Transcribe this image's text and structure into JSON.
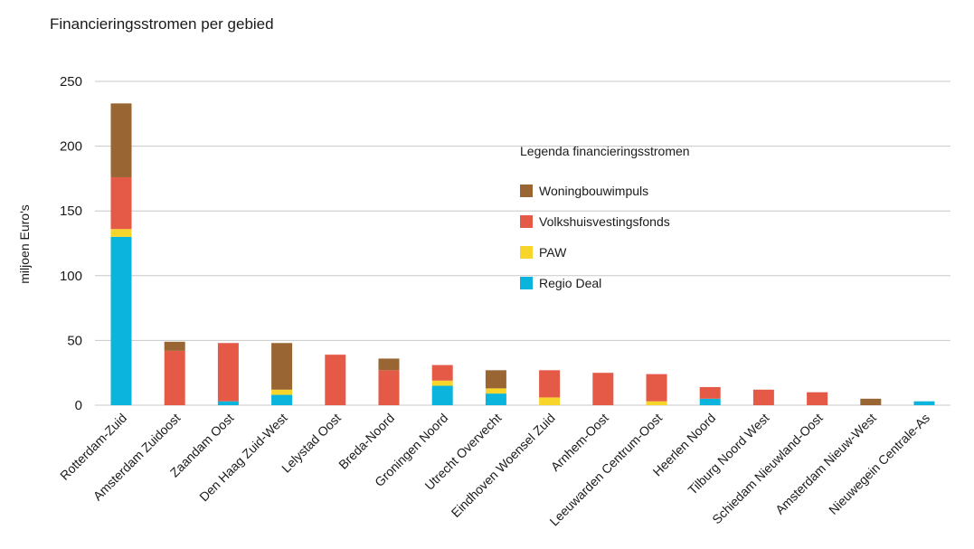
{
  "chart_data": {
    "type": "bar",
    "stacked": true,
    "title": "Financieringsstromen per gebied",
    "xlabel": "",
    "ylabel": "miljoen Euro's",
    "ylim": [
      0,
      250
    ],
    "yticks": [
      0,
      50,
      100,
      150,
      200,
      250
    ],
    "grid": true,
    "legend_title": "Legenda financieringsstromen",
    "legend_position": "center-right",
    "categories": [
      "Rotterdam-Zuid",
      "Amsterdam Zuidoost",
      "Zaandam Oost",
      "Den Haag Zuid-West",
      "Lelystad Oost",
      "Breda-Noord",
      "Groningen Noord",
      "Utrecht Overvecht",
      "Eindhoven Woensel Zuid",
      "Arnhem-Oost",
      "Leeuwarden Centrum-Oost",
      "Heerlen Noord",
      "Tilburg Noord West",
      "Schiedam Nieuwland-Oost",
      "Amsterdam Nieuw-West",
      "Nieuwegein Centrale-As"
    ],
    "series": [
      {
        "name": "Regio Deal",
        "color": "#0bb4dc",
        "values": [
          130,
          0,
          3,
          8,
          0,
          0,
          15,
          9,
          0,
          0,
          0,
          5,
          0,
          0,
          0,
          3
        ]
      },
      {
        "name": "PAW",
        "color": "#f7d52a",
        "values": [
          6,
          0,
          0,
          4,
          0,
          0,
          4,
          4,
          6,
          0,
          3,
          0,
          0,
          0,
          0,
          0
        ]
      },
      {
        "name": "Volkshuisvestingsfonds",
        "color": "#e55a47",
        "values": [
          40,
          42,
          45,
          0,
          39,
          27,
          12,
          0,
          21,
          25,
          21,
          9,
          12,
          10,
          0,
          0
        ]
      },
      {
        "name": "Woningbouwimpuls",
        "color": "#996633",
        "values": [
          57,
          7,
          0,
          36,
          0,
          9,
          0,
          14,
          0,
          0,
          0,
          0,
          0,
          0,
          5,
          0
        ]
      }
    ],
    "legend_order": [
      "Woningbouwimpuls",
      "Volkshuisvestingsfonds",
      "PAW",
      "Regio Deal"
    ]
  }
}
